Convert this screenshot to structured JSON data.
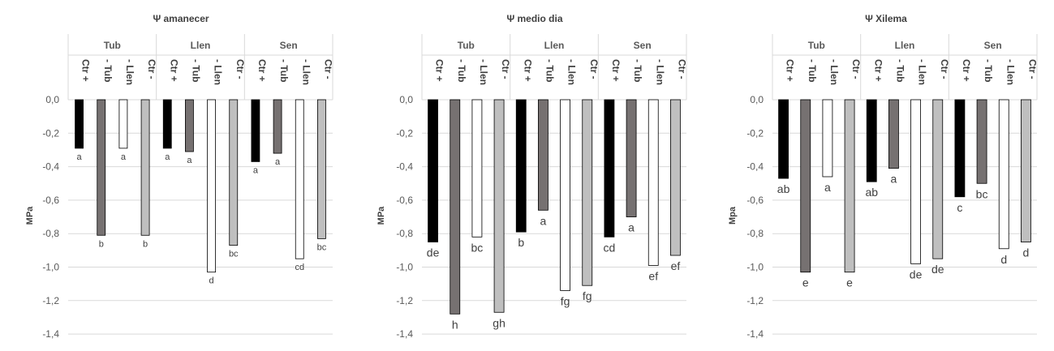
{
  "chart_data": [
    {
      "type": "bar",
      "title": "Ψ amanecer",
      "ylabel": "MPa",
      "ylim": [
        -1.4,
        0
      ],
      "yticks": [
        "0,0",
        "-0,2",
        "-0,4",
        "-0,6",
        "-0,8",
        "-1,0",
        "-1,2",
        "-1,4"
      ],
      "grid": true,
      "groups": [
        {
          "name": "Tub",
          "categories": [
            "Ctr +",
            "- Tub",
            "- Llen",
            "Ctr -"
          ],
          "values": [
            -0.29,
            -0.81,
            -0.29,
            -0.81
          ],
          "letters": [
            "a",
            "b",
            "a",
            "b"
          ]
        },
        {
          "name": "Llen",
          "categories": [
            "Ctr +",
            "- Tub",
            "- Llen",
            "Ctr -"
          ],
          "values": [
            -0.29,
            -0.31,
            -1.03,
            -0.87
          ],
          "letters": [
            "a",
            "a",
            "d",
            "bc"
          ]
        },
        {
          "name": "Sen",
          "categories": [
            "Ctr +",
            "- Tub",
            "- Llen",
            "Ctr -"
          ],
          "values": [
            -0.37,
            -0.32,
            -0.95,
            -0.83
          ],
          "letters": [
            "a",
            "a",
            "cd",
            "bc"
          ]
        }
      ],
      "colors": [
        "#000000",
        "#767171",
        "#ffffff",
        "#bfbfbf"
      ]
    },
    {
      "type": "bar",
      "title": "Ψ medio dia",
      "ylabel": "MPa",
      "ylim": [
        -1.4,
        0
      ],
      "yticks": [
        "0,0",
        "-0,2",
        "-0,4",
        "-0,6",
        "-0,8",
        "-1,0",
        "-1,2",
        "-1,4"
      ],
      "grid": true,
      "groups": [
        {
          "name": "Tub",
          "categories": [
            "Ctr +",
            "- Tub",
            "- Llen",
            "Ctr -"
          ],
          "values": [
            -0.85,
            -1.28,
            -0.82,
            -1.27
          ],
          "letters": [
            "de",
            "h",
            "bc",
            "gh"
          ]
        },
        {
          "name": "Llen",
          "categories": [
            "Ctr +",
            "- Tub",
            "- Llen",
            "Ctr -"
          ],
          "values": [
            -0.79,
            -0.66,
            -1.14,
            -1.11
          ],
          "letters": [
            "b",
            "a",
            "fg",
            "fg"
          ]
        },
        {
          "name": "Sen",
          "categories": [
            "Ctr +",
            "- Tub",
            "- Llen",
            "Ctr -"
          ],
          "values": [
            -0.82,
            -0.7,
            -0.99,
            -0.93
          ],
          "letters": [
            "cd",
            "a",
            "ef",
            "ef"
          ]
        }
      ],
      "colors": [
        "#000000",
        "#767171",
        "#ffffff",
        "#bfbfbf"
      ]
    },
    {
      "type": "bar",
      "title": "Ψ Xilema",
      "ylabel": "Mpa",
      "ylim": [
        -1.4,
        0
      ],
      "yticks": [
        "0,0",
        "-0,2",
        "-0,4",
        "-0,6",
        "-0,8",
        "-1,0",
        "-1,2",
        "-1,4"
      ],
      "grid": true,
      "groups": [
        {
          "name": "Tub",
          "categories": [
            "Ctr +",
            "- Tub",
            "- Llen",
            "Ctr -"
          ],
          "values": [
            -0.47,
            -1.03,
            -0.46,
            -1.03
          ],
          "letters": [
            "ab",
            "e",
            "a",
            "e"
          ]
        },
        {
          "name": "Llen",
          "categories": [
            "Ctr +",
            "- Tub",
            "- Llen",
            "Ctr -"
          ],
          "values": [
            -0.49,
            -0.41,
            -0.98,
            -0.95
          ],
          "letters": [
            "ab",
            "a",
            "de",
            "de"
          ]
        },
        {
          "name": "Sen",
          "categories": [
            "Ctr +",
            "- Tub",
            "- Llen",
            "Ctr -"
          ],
          "values": [
            -0.58,
            -0.5,
            -0.89,
            -0.85
          ],
          "letters": [
            "c",
            "bc",
            "d",
            "d"
          ]
        }
      ],
      "colors": [
        "#000000",
        "#767171",
        "#ffffff",
        "#bfbfbf"
      ]
    }
  ]
}
